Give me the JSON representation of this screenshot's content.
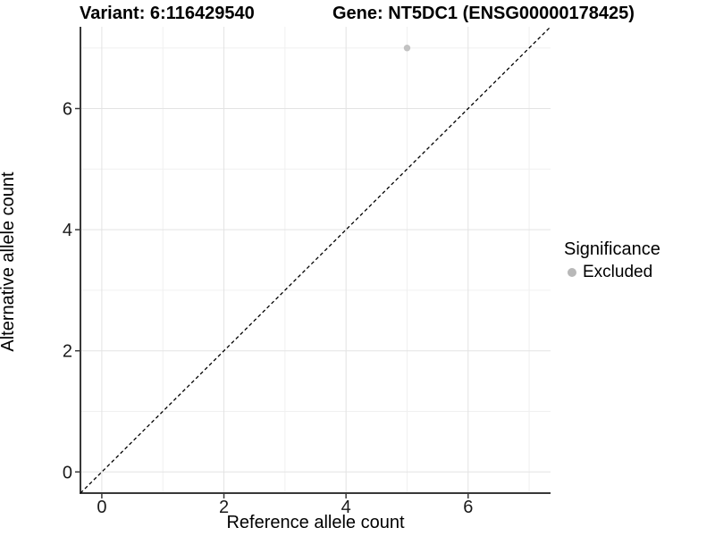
{
  "figure": {
    "title_left": "Variant: 6:116429540",
    "title_right": "Gene: NT5DC1 (ENSG00000178425)"
  },
  "chart_data": {
    "type": "scatter",
    "title": "Variant: 6:116429540 — Gene: NT5DC1 (ENSG00000178425)",
    "xlabel": "Reference allele count",
    "ylabel": "Alternative allele count",
    "xlim": [
      0,
      7
    ],
    "ylim": [
      0,
      7
    ],
    "expansion_fraction": 0.05,
    "x_major_ticks": [
      0,
      2,
      4,
      6
    ],
    "y_major_ticks": [
      0,
      2,
      4,
      6
    ],
    "x_minor_gridlines": [
      1,
      3,
      5,
      7
    ],
    "y_minor_gridlines": [
      1,
      3,
      5,
      7
    ],
    "grid": true,
    "legend_position": "right",
    "series": [
      {
        "name": "Excluded",
        "color": "#c2c2c2",
        "points": [
          {
            "x": 5,
            "y": 7
          }
        ]
      }
    ],
    "identity_line": {
      "show": true,
      "slope": 1,
      "intercept": 0,
      "style": "dashed",
      "color": "#000000"
    },
    "legend": {
      "title": "Significance",
      "items": [
        {
          "label": "Excluded",
          "color": "#b8b8b8"
        }
      ]
    },
    "style_colors": {
      "grid_major": "#e3e3e3",
      "grid_minor": "#f0f0f0",
      "axis_line": "#383838",
      "tick_label": "#1a1a1a",
      "background": "#ffffff"
    }
  }
}
